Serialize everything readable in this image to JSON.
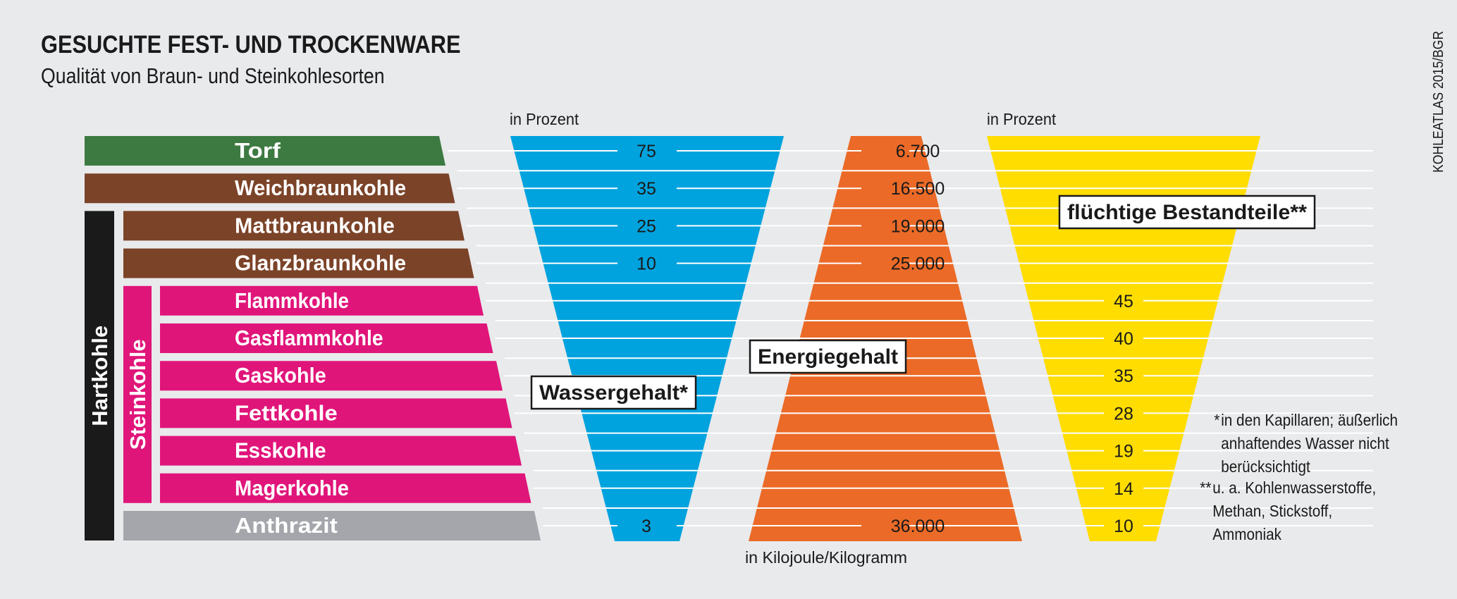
{
  "title": "GESUCHTE FEST- UND TROCKENWARE",
  "subtitle": "Qualität von Braun- und Steinkohlesorten",
  "source": "KOHLEATLAS 2015/BGR",
  "colors": {
    "torf": "#3d7a42",
    "braunkohle": "#7b4328",
    "steinkohle": "#e0157a",
    "anthrazit": "#a4a6ab",
    "hartkohle": "#1a1a1a",
    "wasser": "#00a3de",
    "energie": "#eb6a27",
    "fluechtig": "#ffdd00",
    "background": "#e9eaec"
  },
  "chart_data": {
    "type": "table",
    "categories": [
      "Torf",
      "Weichbraunkohle",
      "Mattbraunkohle",
      "Glanzbraunkohle",
      "Flammkohle",
      "Gasflammkohle",
      "Gaskohle",
      "Fettkohle",
      "Esskohle",
      "Magerkohle",
      "Anthrazit"
    ],
    "groups": [
      {
        "label": "Hartkohle",
        "from": "Mattbraunkohle",
        "to": "Anthrazit"
      },
      {
        "label": "Steinkohle",
        "from": "Flammkohle",
        "to": "Magerkohle"
      }
    ],
    "series": [
      {
        "name": "Wassergehalt*",
        "unit": "in Prozent",
        "values": {
          "Torf": "75",
          "Weichbraunkohle": "35",
          "Mattbraunkohle": "25",
          "Glanzbraunkohle": "10",
          "Anthrazit": "3"
        }
      },
      {
        "name": "Energiegehalt",
        "unit": "in Kilojoule/Kilogramm",
        "values": {
          "Torf": "6.700",
          "Weichbraunkohle": "16.500",
          "Mattbraunkohle": "19.000",
          "Glanzbraunkohle": "25.000",
          "Anthrazit": "36.000"
        }
      },
      {
        "name": "flüchtige Bestandteile**",
        "unit": "in Prozent",
        "values": {
          "Flammkohle": "45",
          "Gasflammkohle": "40",
          "Gaskohle": "35",
          "Fettkohle": "28",
          "Esskohle": "19",
          "Magerkohle": "14",
          "Anthrazit": "10"
        }
      }
    ]
  },
  "footnotes": [
    {
      "mark": "*",
      "lines": [
        "in den Kapillaren; äußerlich",
        "anhaftendes Wasser nicht",
        "berücksichtigt"
      ]
    },
    {
      "mark": "**",
      "lines": [
        "u. a. Kohlenwasserstoffe,",
        "Methan, Stickstoff,",
        "Ammoniak"
      ]
    }
  ]
}
